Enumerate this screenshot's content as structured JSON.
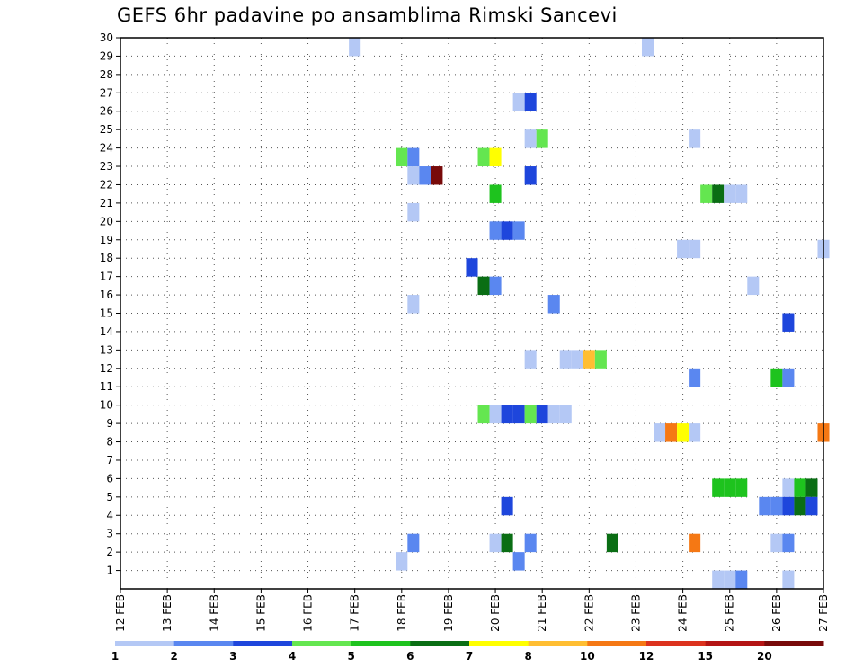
{
  "chart_data": {
    "type": "heatmap",
    "title": "GEFS 6hr padavine po ansamblima Rimski Sancevi",
    "xlabel": "",
    "ylabel": "",
    "x_ticks": [
      "12 FEB",
      "13 FEB",
      "14 FEB",
      "15 FEB",
      "16 FEB",
      "17 FEB",
      "18 FEB",
      "19 FEB",
      "20 FEB",
      "21 FEB",
      "22 FEB",
      "23 FEB",
      "24 FEB",
      "25 FEB",
      "26 FEB",
      "27 FEB"
    ],
    "x_range_days": [
      12,
      27
    ],
    "y_ticks": [
      1,
      2,
      3,
      4,
      5,
      6,
      7,
      8,
      9,
      10,
      11,
      12,
      13,
      14,
      15,
      16,
      17,
      18,
      19,
      20,
      21,
      22,
      23,
      24,
      25,
      26,
      27,
      28,
      29,
      30
    ],
    "y_range": [
      0,
      30
    ],
    "grid": true,
    "colorbar": {
      "labels": [
        "1",
        "2",
        "3",
        "4",
        "5",
        "6",
        "7",
        "8",
        "10",
        "12",
        "15",
        "20"
      ],
      "colors": [
        "#b4c8f5",
        "#5a87f0",
        "#1e46dc",
        "#64e650",
        "#1ec31e",
        "#0a6e14",
        "#ffff00",
        "#ffbe32",
        "#f57814",
        "#dc321e",
        "#b41414",
        "#780a0a"
      ]
    },
    "cells": [
      {
        "day": 17.0,
        "member": 30,
        "color": "#b4c8f5"
      },
      {
        "day": 23.25,
        "member": 30,
        "color": "#b4c8f5"
      },
      {
        "day": 20.5,
        "member": 27,
        "color": "#b4c8f5"
      },
      {
        "day": 20.75,
        "member": 27,
        "color": "#1e46dc"
      },
      {
        "day": 20.75,
        "member": 25,
        "color": "#b4c8f5"
      },
      {
        "day": 21.0,
        "member": 25,
        "color": "#64e650"
      },
      {
        "day": 24.25,
        "member": 25,
        "color": "#b4c8f5"
      },
      {
        "day": 18.0,
        "member": 24,
        "color": "#64e650"
      },
      {
        "day": 18.25,
        "member": 24,
        "color": "#5a87f0"
      },
      {
        "day": 19.75,
        "member": 24,
        "color": "#64e650"
      },
      {
        "day": 20.0,
        "member": 24,
        "color": "#ffff00"
      },
      {
        "day": 18.25,
        "member": 23,
        "color": "#b4c8f5"
      },
      {
        "day": 18.5,
        "member": 23,
        "color": "#5a87f0"
      },
      {
        "day": 18.75,
        "member": 23,
        "color": "#780a0a"
      },
      {
        "day": 20.75,
        "member": 23,
        "color": "#1e46dc"
      },
      {
        "day": 20.0,
        "member": 22,
        "color": "#1ec31e"
      },
      {
        "day": 24.5,
        "member": 22,
        "color": "#64e650"
      },
      {
        "day": 24.75,
        "member": 22,
        "color": "#0a6e14"
      },
      {
        "day": 25.0,
        "member": 22,
        "color": "#b4c8f5"
      },
      {
        "day": 25.25,
        "member": 22,
        "color": "#b4c8f5"
      },
      {
        "day": 18.25,
        "member": 21,
        "color": "#b4c8f5"
      },
      {
        "day": 20.0,
        "member": 20,
        "color": "#5a87f0"
      },
      {
        "day": 20.25,
        "member": 20,
        "color": "#1e46dc"
      },
      {
        "day": 20.5,
        "member": 20,
        "color": "#5a87f0"
      },
      {
        "day": 24.0,
        "member": 19,
        "color": "#b4c8f5"
      },
      {
        "day": 24.25,
        "member": 19,
        "color": "#b4c8f5"
      },
      {
        "day": 27.0,
        "member": 19,
        "color": "#b4c8f5"
      },
      {
        "day": 19.5,
        "member": 18,
        "color": "#1e46dc"
      },
      {
        "day": 19.75,
        "member": 17,
        "color": "#0a6e14"
      },
      {
        "day": 20.0,
        "member": 17,
        "color": "#5a87f0"
      },
      {
        "day": 25.5,
        "member": 17,
        "color": "#b4c8f5"
      },
      {
        "day": 18.25,
        "member": 16,
        "color": "#b4c8f5"
      },
      {
        "day": 21.25,
        "member": 16,
        "color": "#5a87f0"
      },
      {
        "day": 26.25,
        "member": 15,
        "color": "#1e46dc"
      },
      {
        "day": 20.75,
        "member": 13,
        "color": "#b4c8f5"
      },
      {
        "day": 21.5,
        "member": 13,
        "color": "#b4c8f5"
      },
      {
        "day": 21.75,
        "member": 13,
        "color": "#b4c8f5"
      },
      {
        "day": 22.0,
        "member": 13,
        "color": "#ffbe32"
      },
      {
        "day": 22.25,
        "member": 13,
        "color": "#64e650"
      },
      {
        "day": 24.25,
        "member": 12,
        "color": "#5a87f0"
      },
      {
        "day": 26.0,
        "member": 12,
        "color": "#1ec31e"
      },
      {
        "day": 26.25,
        "member": 12,
        "color": "#5a87f0"
      },
      {
        "day": 19.75,
        "member": 10,
        "color": "#64e650"
      },
      {
        "day": 20.0,
        "member": 10,
        "color": "#b4c8f5"
      },
      {
        "day": 20.25,
        "member": 10,
        "color": "#1e46dc"
      },
      {
        "day": 20.5,
        "member": 10,
        "color": "#1e46dc"
      },
      {
        "day": 20.75,
        "member": 10,
        "color": "#64e650"
      },
      {
        "day": 21.0,
        "member": 10,
        "color": "#1e46dc"
      },
      {
        "day": 21.25,
        "member": 10,
        "color": "#b4c8f5"
      },
      {
        "day": 21.5,
        "member": 10,
        "color": "#b4c8f5"
      },
      {
        "day": 23.5,
        "member": 9,
        "color": "#b4c8f5"
      },
      {
        "day": 23.75,
        "member": 9,
        "color": "#f57814"
      },
      {
        "day": 24.0,
        "member": 9,
        "color": "#ffff00"
      },
      {
        "day": 24.25,
        "member": 9,
        "color": "#b4c8f5"
      },
      {
        "day": 27.0,
        "member": 9,
        "color": "#f57814"
      },
      {
        "day": 24.75,
        "member": 6,
        "color": "#1ec31e"
      },
      {
        "day": 25.0,
        "member": 6,
        "color": "#1ec31e"
      },
      {
        "day": 25.25,
        "member": 6,
        "color": "#1ec31e"
      },
      {
        "day": 26.25,
        "member": 6,
        "color": "#b4c8f5"
      },
      {
        "day": 26.5,
        "member": 6,
        "color": "#1ec31e"
      },
      {
        "day": 26.75,
        "member": 6,
        "color": "#0a6e14"
      },
      {
        "day": 20.25,
        "member": 5,
        "color": "#1e46dc"
      },
      {
        "day": 25.75,
        "member": 5,
        "color": "#5a87f0"
      },
      {
        "day": 26.0,
        "member": 5,
        "color": "#5a87f0"
      },
      {
        "day": 26.25,
        "member": 5,
        "color": "#1e46dc"
      },
      {
        "day": 26.5,
        "member": 5,
        "color": "#0a6e14"
      },
      {
        "day": 26.75,
        "member": 5,
        "color": "#1e46dc"
      },
      {
        "day": 18.25,
        "member": 3,
        "color": "#5a87f0"
      },
      {
        "day": 20.0,
        "member": 3,
        "color": "#b4c8f5"
      },
      {
        "day": 20.25,
        "member": 3,
        "color": "#0a6e14"
      },
      {
        "day": 20.75,
        "member": 3,
        "color": "#5a87f0"
      },
      {
        "day": 22.5,
        "member": 3,
        "color": "#0a6e14"
      },
      {
        "day": 24.25,
        "member": 3,
        "color": "#f57814"
      },
      {
        "day": 26.0,
        "member": 3,
        "color": "#b4c8f5"
      },
      {
        "day": 26.25,
        "member": 3,
        "color": "#5a87f0"
      },
      {
        "day": 18.0,
        "member": 2,
        "color": "#b4c8f5"
      },
      {
        "day": 20.5,
        "member": 2,
        "color": "#5a87f0"
      },
      {
        "day": 24.75,
        "member": 1,
        "color": "#b4c8f5"
      },
      {
        "day": 25.0,
        "member": 1,
        "color": "#b4c8f5"
      },
      {
        "day": 25.25,
        "member": 1,
        "color": "#5a87f0"
      },
      {
        "day": 26.25,
        "member": 1,
        "color": "#b4c8f5"
      }
    ]
  }
}
